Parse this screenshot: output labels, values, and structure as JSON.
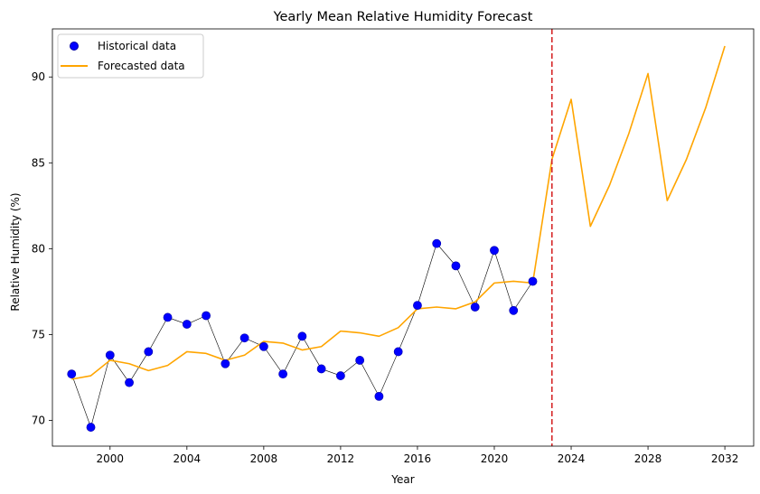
{
  "chart_data": {
    "type": "line",
    "title": "Yearly Mean Relative Humidity Forecast",
    "xlabel": "Year",
    "ylabel": "Relative Humidity (%)",
    "xlim": [
      1997,
      2033.5
    ],
    "ylim": [
      68.5,
      92.8
    ],
    "xticks": [
      2000,
      2004,
      2008,
      2012,
      2016,
      2020,
      2024,
      2028,
      2032
    ],
    "yticks": [
      70,
      75,
      80,
      85,
      90
    ],
    "grid": false,
    "legend_position": "top-left",
    "forecast_start_marker": 2023,
    "colors": {
      "historical": "#0000ff",
      "historical_edge": "#0000aa",
      "connector": "#000000",
      "forecast": "#ffa500",
      "divider": "#d62728"
    },
    "series": [
      {
        "name": "Historical data",
        "style": "scatter",
        "x": [
          1998,
          1999,
          2000,
          2001,
          2002,
          2003,
          2004,
          2005,
          2006,
          2007,
          2008,
          2009,
          2010,
          2011,
          2012,
          2013,
          2014,
          2015,
          2016,
          2017,
          2018,
          2019,
          2020,
          2021,
          2022
        ],
        "y": [
          72.7,
          69.6,
          73.8,
          72.2,
          74.0,
          76.0,
          75.6,
          76.1,
          73.3,
          74.8,
          74.3,
          72.7,
          74.9,
          73.0,
          72.6,
          73.5,
          71.4,
          74.0,
          76.7,
          80.3,
          79.0,
          76.6,
          79.9,
          76.4,
          78.1
        ]
      },
      {
        "name": "Forecasted data",
        "style": "line",
        "x": [
          1998,
          1999,
          2000,
          2001,
          2002,
          2003,
          2004,
          2005,
          2006,
          2007,
          2008,
          2009,
          2010,
          2011,
          2012,
          2013,
          2014,
          2015,
          2016,
          2017,
          2018,
          2019,
          2020,
          2021,
          2022,
          2023,
          2024,
          2025,
          2026,
          2027,
          2028,
          2029,
          2030,
          2031,
          2032
        ],
        "y": [
          72.4,
          72.6,
          73.5,
          73.3,
          72.9,
          73.2,
          74.0,
          73.9,
          73.5,
          73.8,
          74.6,
          74.5,
          74.1,
          74.3,
          75.2,
          75.1,
          74.9,
          75.4,
          76.5,
          76.6,
          76.5,
          76.9,
          78.0,
          78.1,
          78.0,
          85.2,
          88.7,
          81.3,
          83.7,
          86.7,
          90.2,
          82.8,
          85.2,
          88.2,
          91.8
        ]
      }
    ]
  }
}
